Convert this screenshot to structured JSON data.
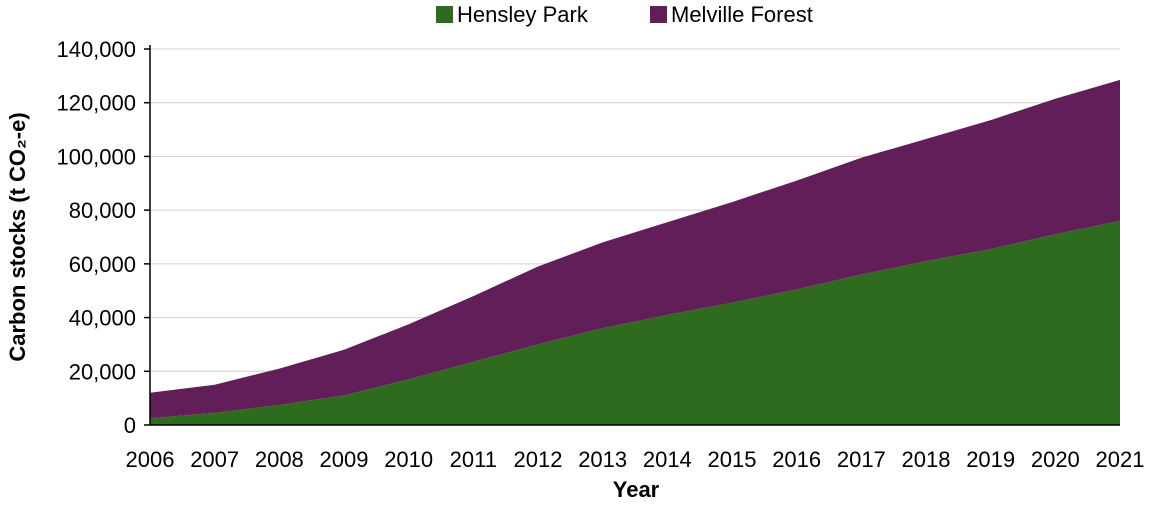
{
  "chart_data": {
    "type": "area",
    "stacked": true,
    "x": [
      "2006",
      "2007",
      "2008",
      "2009",
      "2010",
      "2011",
      "2012",
      "2013",
      "2014",
      "2015",
      "2016",
      "2017",
      "2018",
      "2019",
      "2020",
      "2021"
    ],
    "series": [
      {
        "name": "Hensley Park",
        "color": "#2e6b1e",
        "values": [
          2500,
          4500,
          7500,
          11000,
          17000,
          23500,
          30000,
          36000,
          41000,
          45500,
          50500,
          56000,
          61000,
          65500,
          71000,
          76000
        ]
      },
      {
        "name": "Melville Forest",
        "color": "#621e58",
        "values": [
          9500,
          10500,
          13500,
          17000,
          20500,
          24500,
          29000,
          32000,
          34500,
          37500,
          40500,
          43500,
          45500,
          48000,
          50500,
          52500
        ]
      }
    ],
    "xlabel": "Year",
    "ylabel": "Carbon stocks (t CO₂-e)",
    "ylim": [
      0,
      140000
    ],
    "yticks": [
      "0",
      "20,000",
      "40,000",
      "60,000",
      "80,000",
      "100,000",
      "120,000",
      "140,000"
    ],
    "grid": "horizontal",
    "legend": "top-center"
  }
}
